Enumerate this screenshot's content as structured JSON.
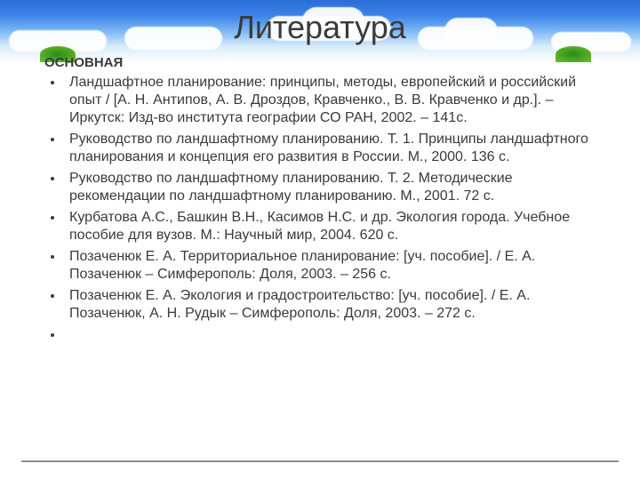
{
  "slide": {
    "background": "#ffffff",
    "sky_gradient": [
      "#2a6fd6",
      "#3b83e8",
      "#7db8f5",
      "#d9ecfb",
      "#ffffff"
    ],
    "title": "Литература",
    "title_fontsize": 36,
    "title_color": "#3a3a3a",
    "subheading": "ОСНОВНАЯ",
    "subheading_fontsize": 15,
    "body_fontsize": 16,
    "text_color": "#3a3a3a",
    "divider_color": "#8a8a8a",
    "items": [
      "Ландшафтное планирование: принципы, методы, европейский и российский опыт / [А. Н. Антипов, А. В. Дроздов, Кравченко., В. В. Кравченко и др.]. – Иркутск: Изд-во института географии СО РАН, 2002. – 141с.",
      "Руководство по ландшафтному планированию. Т. 1. Принципы ландшафтного планирования и концепция его развития в России. М., 2000. 136 с.",
      "Руководство по ландшафтному планированию. Т. 2. Методические рекомендации по ландшафтному планированию. М., 2001. 72 с.",
      "Курбатова А.С., Башкин В.Н., Касимов Н.С. и др. Экология города. Учебное пособие для вузов. М.: Научный мир, 2004. 620 с.",
      "Позаченюк Е. А. Территориальное планирование: [уч. пособие]. / Е. А. Позаченюк – Симферополь: Доля, 2003. – 256 с.",
      "Позаченюк Е. А. Экология и градостроительство: [уч. пособие]. / Е. А. Позаченюк, А. Н. Рудык – Симферополь: Доля, 2003. – 272 с.",
      ""
    ]
  }
}
